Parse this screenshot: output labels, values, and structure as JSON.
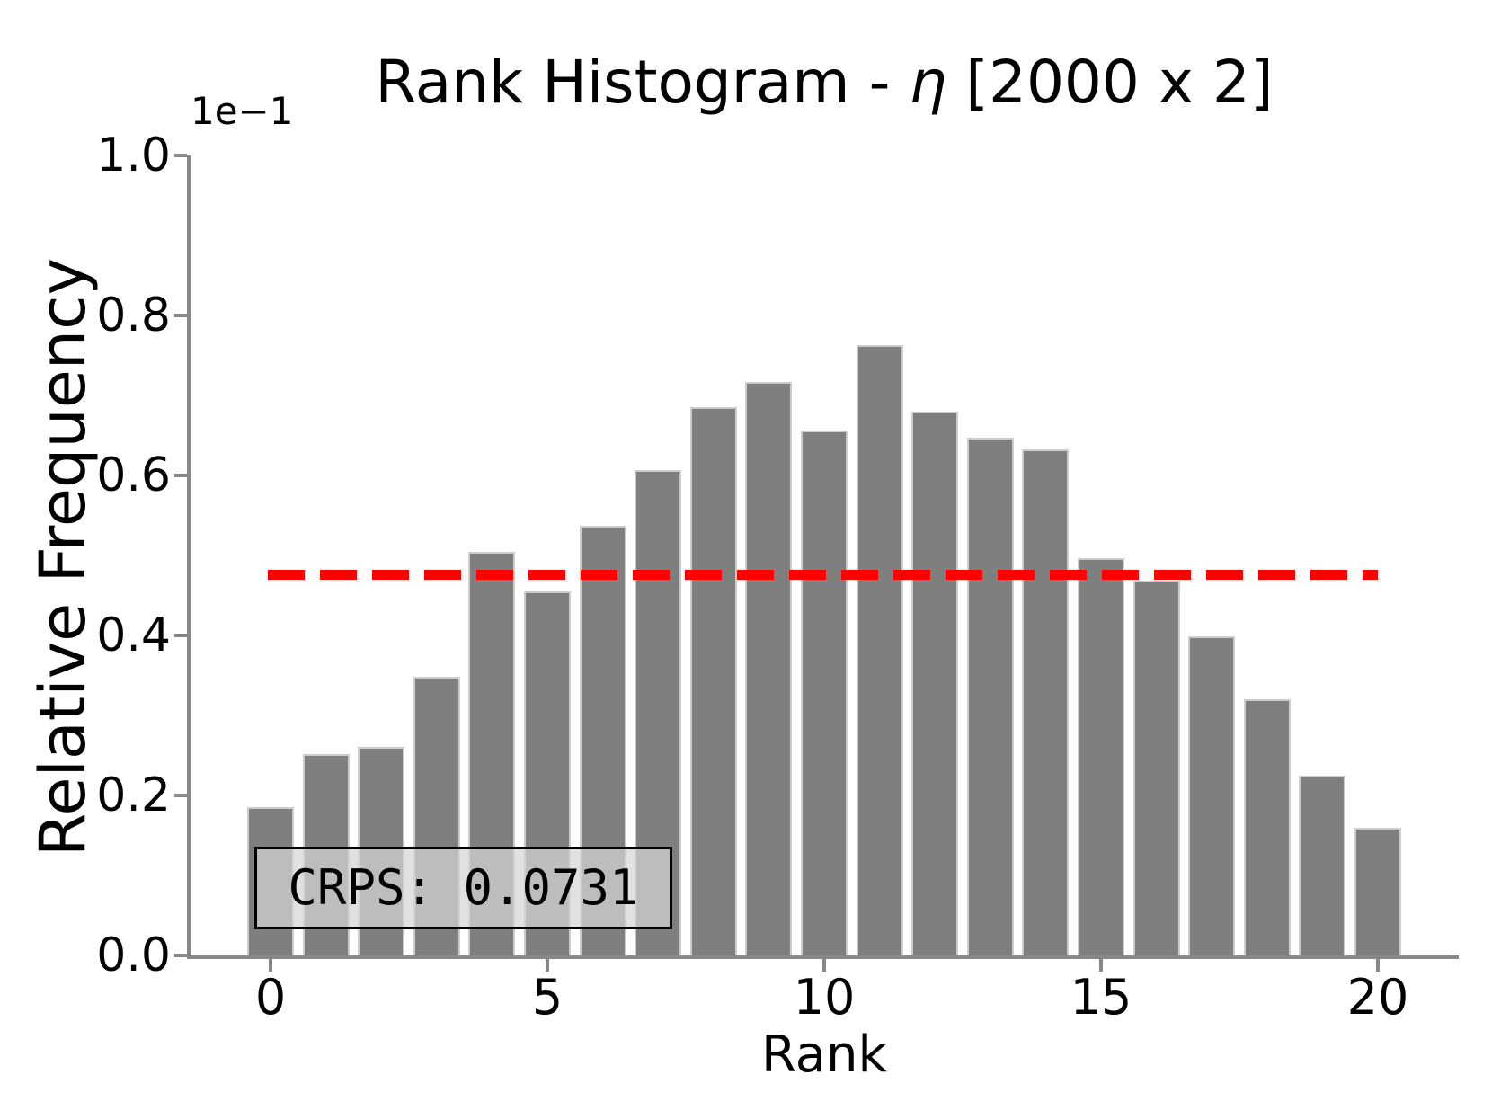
{
  "title": {
    "prefix": "Rank Histogram - ",
    "eta": "η",
    "suffix": " [2000 x 2]"
  },
  "y_axis": {
    "label": "Relative Frequency",
    "offset_text": "1e−1",
    "tick_labels": [
      "0.0",
      "0.2",
      "0.4",
      "0.6",
      "0.8",
      "1.0"
    ]
  },
  "x_axis": {
    "label": "Rank",
    "tick_labels": [
      "0",
      "5",
      "10",
      "15",
      "20"
    ],
    "tick_values": [
      0,
      5,
      10,
      15,
      20
    ]
  },
  "annotation": {
    "crps_text": "CRPS: 0.0731",
    "crps_value": 0.0731
  },
  "colors": {
    "bar_fill": "#7f7f7f",
    "bar_edge": "#cccccc",
    "reference_line": "#ff0000",
    "axis_spine": "#878787",
    "annotation_background": "#d6d6d6",
    "annotation_border": "#000000",
    "text": "#000000",
    "background": "#ffffff"
  },
  "chart_data": {
    "type": "bar",
    "title": "Rank Histogram - η [2000 x 2]",
    "xlabel": "Rank",
    "ylabel": "Relative Frequency",
    "y_offset_factor": "1e-1",
    "x": [
      0,
      1,
      2,
      3,
      4,
      5,
      6,
      7,
      8,
      9,
      10,
      11,
      12,
      13,
      14,
      15,
      16,
      17,
      18,
      19,
      20
    ],
    "values": [
      0.0185,
      0.0252,
      0.0261,
      0.0348,
      0.0505,
      0.0455,
      0.0537,
      0.0607,
      0.0685,
      0.0717,
      0.0656,
      0.0763,
      0.068,
      0.0647,
      0.0633,
      0.0497,
      0.0468,
      0.0399,
      0.032,
      0.0225,
      0.016
    ],
    "xlim": [
      -0.9,
      21.4
    ],
    "ylim": [
      0.0,
      0.1
    ],
    "x_ticks": [
      0,
      5,
      10,
      15,
      20
    ],
    "y_ticks": [
      0.0,
      0.02,
      0.04,
      0.06,
      0.08,
      0.1
    ],
    "reference_line": {
      "y": 0.0476,
      "style": "dashed",
      "color": "#ff0000",
      "meaning": "uniform expected relative frequency 1/21"
    },
    "grid": false,
    "legend": null,
    "crps": 0.0731
  }
}
